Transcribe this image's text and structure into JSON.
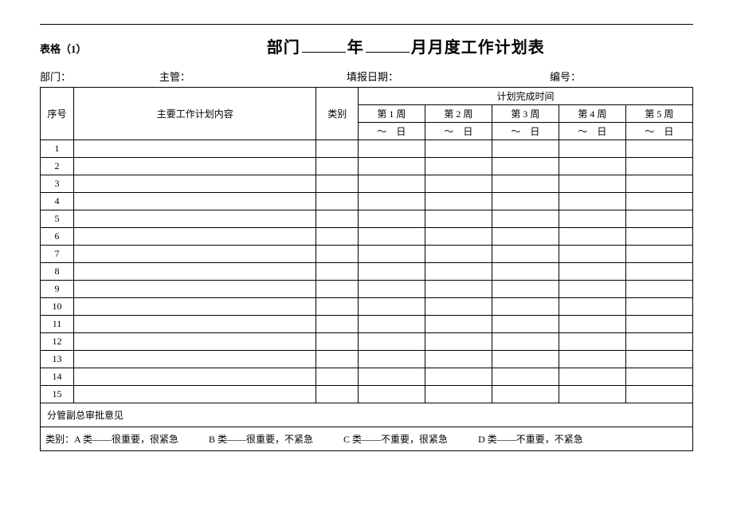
{
  "form_id": "表格（1）",
  "title": {
    "p1": "部门",
    "p2": "年",
    "p3": "月月度工作计划表"
  },
  "meta": {
    "dept_label": "部门：",
    "mgr_label": "主管：",
    "date_label": "填报日期：",
    "no_label": "编号："
  },
  "header": {
    "seq": "序号",
    "desc": "主要工作计划内容",
    "cat": "类别",
    "schedule": "计划完成时间",
    "weeks": [
      "第 1 周",
      "第 2 周",
      "第 3 周",
      "第 4 周",
      "第 5 周"
    ],
    "range": "～　日"
  },
  "rows": [
    "1",
    "2",
    "3",
    "4",
    "5",
    "6",
    "7",
    "8",
    "9",
    "10",
    "11",
    "12",
    "13",
    "14",
    "15"
  ],
  "review_label": "分管副总审批意见",
  "legend": {
    "prefix": "类别：",
    "a": "A 类——很重要，很紧急",
    "b": "B 类——很重要，不紧急",
    "c": "C 类——不重要，很紧急",
    "d": "D 类——不重要，不紧急"
  },
  "colors": {
    "text": "#000000",
    "bg": "#ffffff",
    "border": "#000000"
  }
}
